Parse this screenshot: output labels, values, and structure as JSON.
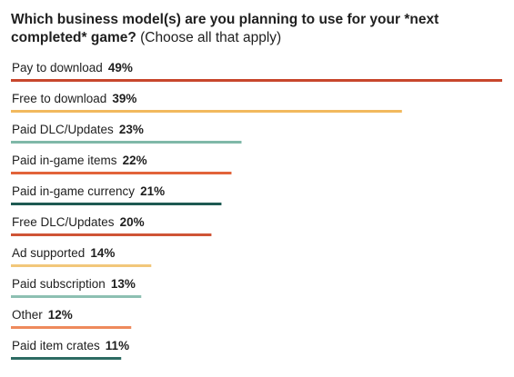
{
  "chart_data": {
    "type": "bar",
    "orientation": "horizontal",
    "title": "Which business model(s) are you planning to use for your *next completed* game?",
    "subtitle": "(Choose all that apply)",
    "categories": [
      "Pay to download",
      "Free to download",
      "Paid DLC/Updates",
      "Paid in-game items",
      "Paid in-game currency",
      "Free DLC/Updates",
      "Ad supported",
      "Paid subscription",
      "Other",
      "Paid item crates"
    ],
    "values": [
      49,
      39,
      23,
      22,
      21,
      20,
      14,
      13,
      12,
      11
    ],
    "value_labels": [
      "49%",
      "39%",
      "23%",
      "22%",
      "21%",
      "20%",
      "14%",
      "13%",
      "12%",
      "11%"
    ],
    "unit": "%",
    "colors": [
      "#c8462c",
      "#f2b95e",
      "#7fb8a8",
      "#e2633a",
      "#1e5a52",
      "#cf5436",
      "#f2c77a",
      "#8dc0b2",
      "#ee8a5c",
      "#2d6b63"
    ],
    "xlim": [
      0,
      49
    ],
    "grid": false,
    "legend": "none"
  }
}
